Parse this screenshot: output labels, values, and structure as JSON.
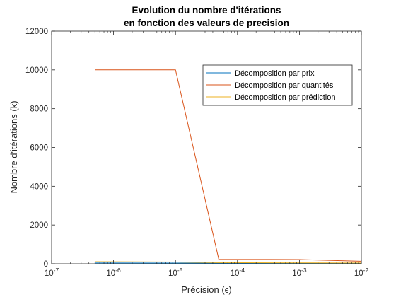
{
  "chart_data": {
    "type": "line",
    "title_lines": [
      "Evolution du nombre d'itérations",
      "en fonction des valeurs de precision"
    ],
    "xlabel": "Précision (ϵ)",
    "ylabel": "Nombre d'itérations (k)",
    "xscale": "log",
    "xlim": [
      1e-07,
      0.01
    ],
    "ylim": [
      0,
      12000
    ],
    "x_ticks": [
      {
        "value": 1e-07,
        "base": "10",
        "exp": "-7"
      },
      {
        "value": 1e-06,
        "base": "10",
        "exp": "-6"
      },
      {
        "value": 1e-05,
        "base": "10",
        "exp": "-5"
      },
      {
        "value": 0.0001,
        "base": "10",
        "exp": "-4"
      },
      {
        "value": 0.001,
        "base": "10",
        "exp": "-3"
      },
      {
        "value": 0.01,
        "base": "10",
        "exp": "-2"
      }
    ],
    "y_ticks": [
      {
        "value": 0,
        "label": "0"
      },
      {
        "value": 2000,
        "label": "2000"
      },
      {
        "value": 4000,
        "label": "4000"
      },
      {
        "value": 6000,
        "label": "6000"
      },
      {
        "value": 8000,
        "label": "8000"
      },
      {
        "value": 10000,
        "label": "10000"
      },
      {
        "value": 12000,
        "label": "12000"
      }
    ],
    "grid": false,
    "legend_position": "top-right",
    "series": [
      {
        "name": "Décomposition par prix",
        "color": "#0072BD",
        "x": [
          5e-07,
          1e-05,
          5e-05,
          0.01
        ],
        "y": [
          40,
          35,
          30,
          20
        ]
      },
      {
        "name": "Décomposition par quantités",
        "color": "#D95319",
        "x": [
          5e-07,
          1e-05,
          5e-05,
          0.001,
          0.01
        ],
        "y": [
          10000,
          10000,
          230,
          220,
          130
        ]
      },
      {
        "name": "Décomposition par prédiction",
        "color": "#EDB120",
        "x": [
          5e-07,
          1e-05,
          5e-05,
          0.01
        ],
        "y": [
          110,
          90,
          60,
          40
        ]
      }
    ]
  }
}
